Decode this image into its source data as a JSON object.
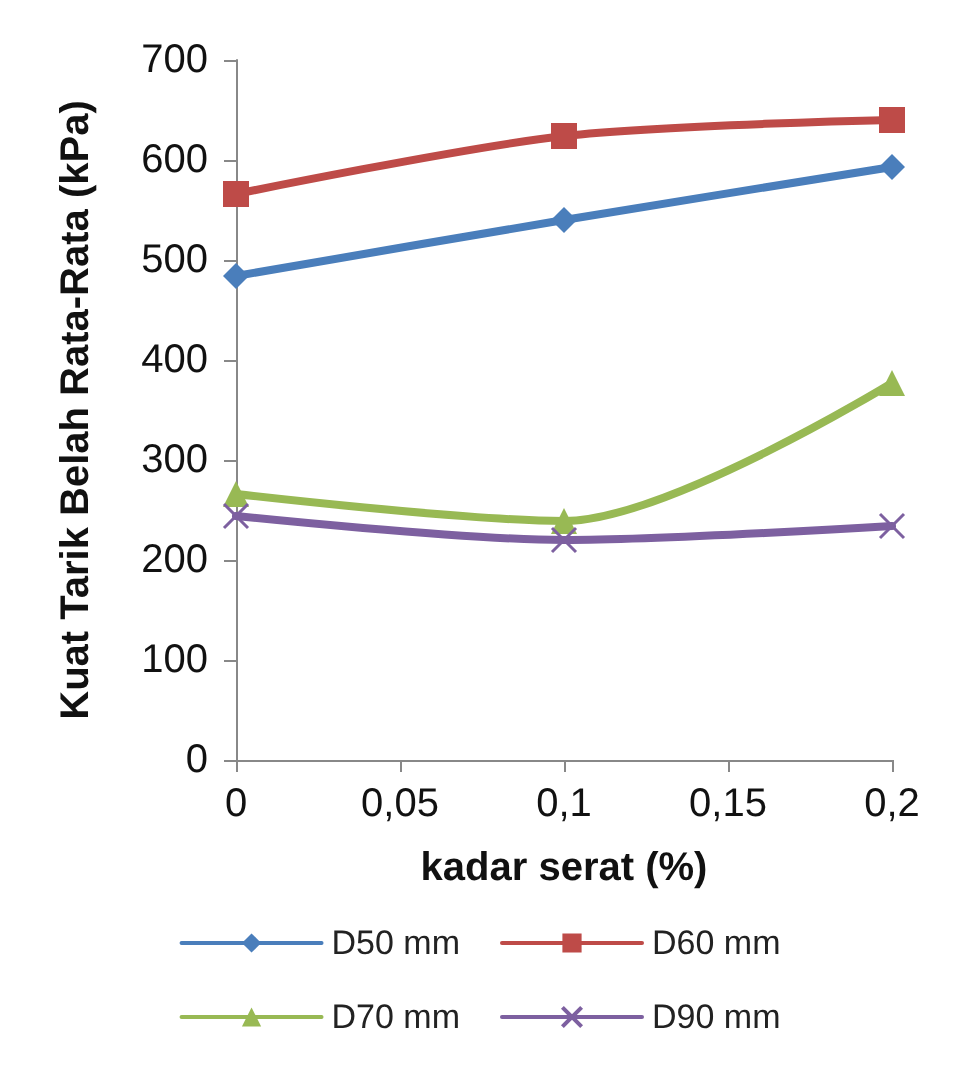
{
  "chart_data": {
    "type": "line",
    "xlabel": "kadar serat (%)",
    "ylabel": "Kuat Tarik Belah Rata-Rata (kPa)",
    "x": [
      0,
      0.1,
      0.2
    ],
    "series": [
      {
        "name": "D50 mm",
        "color": "#4a7ebb",
        "marker": "diamond",
        "values": [
          484,
          540,
          593
        ]
      },
      {
        "name": "D60 mm",
        "color": "#be4b48",
        "marker": "square",
        "values": [
          566,
          624,
          640
        ]
      },
      {
        "name": "D70 mm",
        "color": "#98b954",
        "marker": "triangle",
        "values": [
          266,
          239,
          377
        ]
      },
      {
        "name": "D90 mm",
        "color": "#7d60a0",
        "marker": "cross",
        "values": [
          244,
          220,
          234
        ]
      }
    ],
    "xlim": [
      0,
      0.2
    ],
    "xticks": [
      0,
      {
        "value": 0.05,
        "label": "0,05"
      },
      {
        "value": 0.1,
        "label": "0,1"
      },
      {
        "value": 0.15,
        "label": "0,15"
      },
      {
        "value": 0.2,
        "label": "0,2"
      }
    ],
    "ylim": [
      0,
      700
    ],
    "yticks": [
      0,
      100,
      200,
      300,
      400,
      500,
      600,
      700
    ],
    "grid": false,
    "legend": "bottom",
    "line_style": "solid"
  }
}
